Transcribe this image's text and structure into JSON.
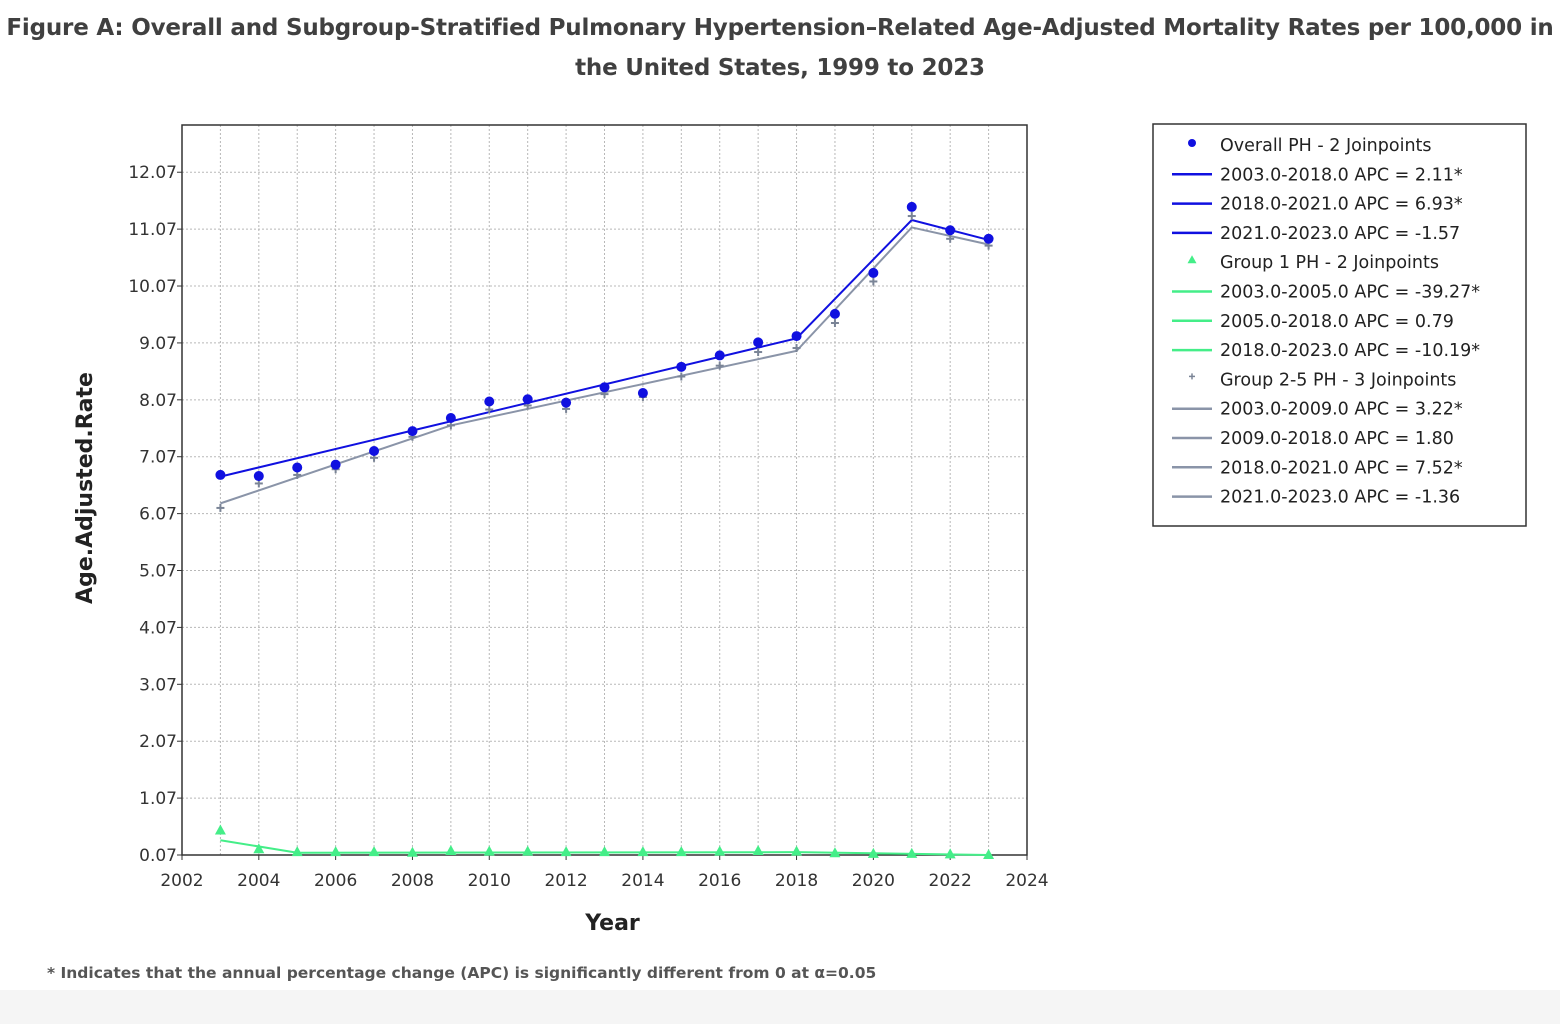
{
  "figure_title": "Figure A: Overall and Subgroup-Stratified Pulmonary Hypertension–Related Age-Adjusted Mortality Rates per 100,000 in the United States, 1999 to 2023",
  "footnote": "* Indicates that the annual percentage change (APC) is significantly different from 0 at α=0.05",
  "colors": {
    "overall": "#1010e0",
    "group1": "#44ee88",
    "group25": "#8a94a8",
    "grid": "#b8b8b8",
    "axis": "#333333"
  },
  "legend": [
    {
      "kind": "marker",
      "marker": "circle",
      "series": "overall",
      "label": "Overall PH - 2 Joinpoints"
    },
    {
      "kind": "line",
      "series": "overall",
      "label": "2003.0-2018.0 APC  =  2.11*"
    },
    {
      "kind": "line",
      "series": "overall",
      "label": "2018.0-2021.0 APC  =  6.93*"
    },
    {
      "kind": "line",
      "series": "overall",
      "label": "2021.0-2023.0 APC  =  -1.57"
    },
    {
      "kind": "marker",
      "marker": "triangle",
      "series": "group1",
      "label": "Group 1 PH - 2 Joinpoints"
    },
    {
      "kind": "line",
      "series": "group1",
      "label": "2003.0-2005.0 APC  =  -39.27*"
    },
    {
      "kind": "line",
      "series": "group1",
      "label": "2005.0-2018.0 APC  =    0.79"
    },
    {
      "kind": "line",
      "series": "group1",
      "label": "2018.0-2023.0 APC  =  -10.19*"
    },
    {
      "kind": "marker",
      "marker": "plus",
      "series": "group25",
      "label": "Group 2-5 PH - 3 Joinpoints"
    },
    {
      "kind": "line",
      "series": "group25",
      "label": "2003.0-2009.0 APC  =  3.22*"
    },
    {
      "kind": "line",
      "series": "group25",
      "label": "2009.0-2018.0 APC  =  1.80"
    },
    {
      "kind": "line",
      "series": "group25",
      "label": "2018.0-2021.0 APC  =  7.52*"
    },
    {
      "kind": "line",
      "series": "group25",
      "label": "2021.0-2023.0 APC  =  -1.36"
    }
  ],
  "chart_data": {
    "type": "scatter",
    "title": "Figure A: Overall and Subgroup-Stratified Pulmonary Hypertension–Related Age-Adjusted Mortality Rates per 100,000 in the United States, 1999 to 2023",
    "xlabel": "Year",
    "ylabel": "Age.Adjusted.Rate",
    "xlim": [
      2002,
      2024
    ],
    "ylim": [
      0.07,
      12.9
    ],
    "x_ticks": [
      2002,
      2004,
      2006,
      2008,
      2010,
      2012,
      2014,
      2016,
      2018,
      2020,
      2022,
      2024
    ],
    "y_ticks": [
      0.07,
      1.07,
      2.07,
      3.07,
      4.07,
      5.07,
      6.07,
      7.07,
      8.07,
      9.07,
      10.07,
      11.07,
      12.07
    ],
    "x_tick_labels": [
      "2002",
      "2004",
      "2006",
      "2008",
      "2010",
      "2012",
      "2014",
      "2016",
      "2018",
      "2020",
      "2022",
      "2024"
    ],
    "y_tick_labels": [
      "0.07",
      "1.07",
      "2.07",
      "3.07",
      "4.07",
      "5.07",
      "6.07",
      "7.07",
      "8.07",
      "9.07",
      "10.07",
      "11.07",
      "12.07"
    ],
    "grid": true,
    "legend_position": "right",
    "series": [
      {
        "name": "Overall PH - 2 Joinpoints",
        "key": "overall",
        "marker": "circle",
        "x": [
          2003,
          2004,
          2005,
          2006,
          2007,
          2008,
          2009,
          2010,
          2011,
          2012,
          2013,
          2014,
          2015,
          2016,
          2017,
          2018,
          2019,
          2020,
          2021,
          2022,
          2023
        ],
        "y": [
          6.75,
          6.73,
          6.88,
          6.93,
          7.17,
          7.52,
          7.75,
          8.04,
          8.08,
          8.02,
          8.29,
          8.19,
          8.65,
          8.85,
          9.08,
          9.19,
          9.58,
          10.3,
          11.46,
          11.05,
          10.9
        ],
        "fit": {
          "x": [
            2003,
            2018,
            2021,
            2023
          ],
          "y": [
            6.72,
            9.15,
            11.23,
            10.88
          ]
        },
        "apc_labels": [
          "2003.0-2018.0 APC = 2.11*",
          "2018.0-2021.0 APC = 6.93*",
          "2021.0-2023.0 APC = -1.57"
        ]
      },
      {
        "name": "Group 1 PH - 2 Joinpoints",
        "key": "group1",
        "marker": "triangle",
        "x": [
          2003,
          2004,
          2005,
          2006,
          2007,
          2008,
          2009,
          2010,
          2011,
          2012,
          2013,
          2014,
          2015,
          2016,
          2017,
          2018,
          2019,
          2020,
          2021,
          2022,
          2023
        ],
        "y": [
          0.5,
          0.17,
          0.12,
          0.12,
          0.12,
          0.11,
          0.14,
          0.13,
          0.13,
          0.12,
          0.12,
          0.12,
          0.12,
          0.13,
          0.14,
          0.13,
          0.1,
          0.09,
          0.09,
          0.08,
          0.07
        ],
        "fit": {
          "x": [
            2003,
            2005,
            2018,
            2023
          ],
          "y": [
            0.33,
            0.11,
            0.12,
            0.07
          ]
        },
        "apc_labels": [
          "2003.0-2005.0 APC = -39.27*",
          "2005.0-2018.0 APC = 0.79",
          "2018.0-2023.0 APC = -10.19*"
        ]
      },
      {
        "name": "Group 2-5 PH - 3 Joinpoints",
        "key": "group25",
        "marker": "plus",
        "x": [
          2003,
          2004,
          2005,
          2006,
          2007,
          2008,
          2009,
          2010,
          2011,
          2012,
          2013,
          2014,
          2015,
          2016,
          2017,
          2018,
          2019,
          2020,
          2021,
          2022,
          2023
        ],
        "y": [
          6.17,
          6.6,
          6.75,
          6.85,
          7.05,
          7.42,
          7.62,
          7.9,
          7.97,
          7.91,
          8.17,
          8.12,
          8.48,
          8.67,
          8.91,
          8.98,
          9.42,
          10.15,
          11.3,
          10.9,
          10.78
        ],
        "fit": {
          "x": [
            2003,
            2009,
            2018,
            2021,
            2023
          ],
          "y": [
            6.25,
            7.62,
            8.93,
            11.1,
            10.8
          ]
        },
        "apc_labels": [
          "2003.0-2009.0 APC = 3.22*",
          "2009.0-2018.0 APC = 1.80",
          "2018.0-2021.0 APC = 7.52*",
          "2021.0-2023.0 APC = -1.36"
        ]
      }
    ]
  }
}
